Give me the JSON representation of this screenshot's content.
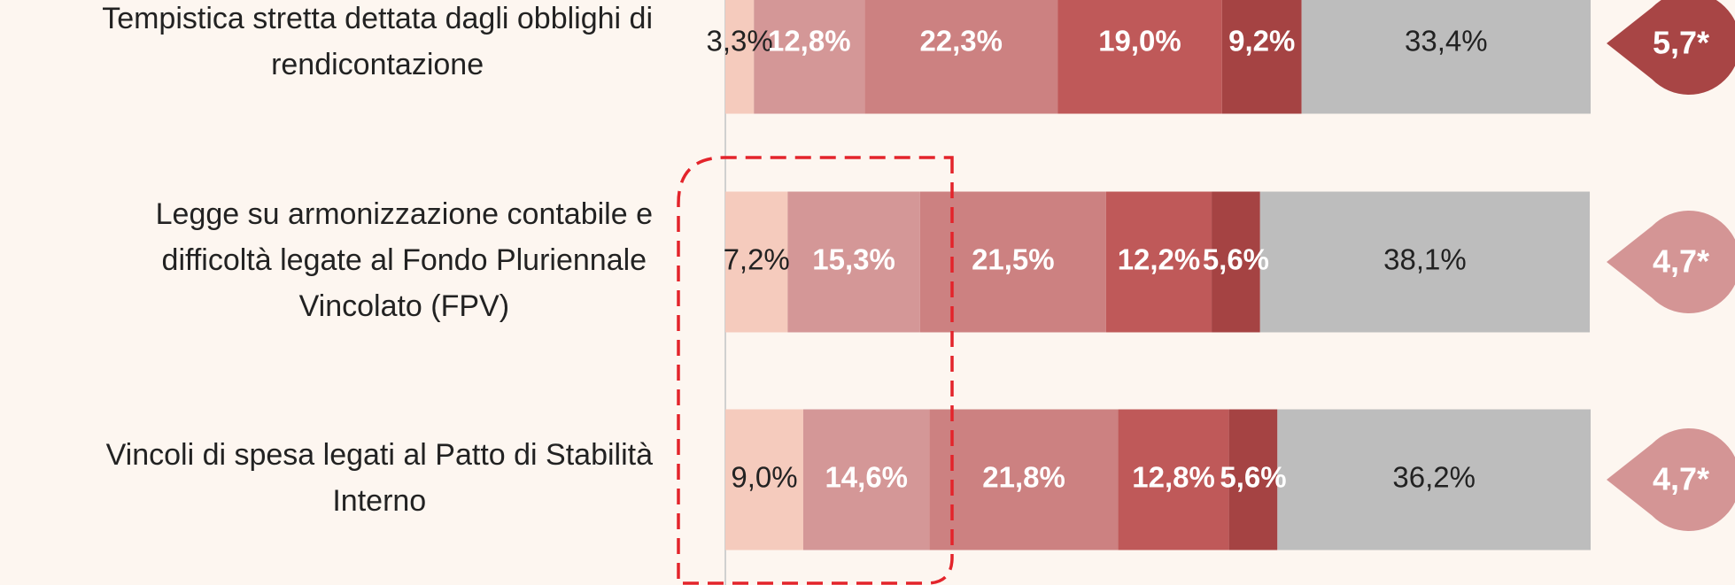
{
  "chart_data": {
    "type": "stacked-bar-horizontal",
    "categories": [
      [
        "Tempistica stretta dettata dagli obblighi di",
        "rendicontazione"
      ],
      [
        "Legge su armonizzazione contabile e",
        "difficoltà legate al Fondo Pluriennale",
        "Vincolato (FPV)"
      ],
      [
        "Vincoli di spesa legati al Patto di Stabilità",
        "Interno"
      ]
    ],
    "xlim": [
      0,
      100
    ],
    "series": [
      {
        "color": "#f5cbbd",
        "label_color": "#222222",
        "values": [
          3.3,
          7.2,
          9.0
        ],
        "value_labels": [
          "3,3%",
          "7,2%",
          "9,0%"
        ]
      },
      {
        "color": "#d49797",
        "label_color": "#ffffff",
        "values": [
          12.8,
          15.3,
          14.6
        ],
        "value_labels": [
          "12,8%",
          "15,3%",
          "14,6%"
        ]
      },
      {
        "color": "#cc8181",
        "label_color": "#ffffff",
        "values": [
          22.3,
          21.5,
          21.8
        ],
        "value_labels": [
          "22,3%",
          "21,5%",
          "21,8%"
        ]
      },
      {
        "color": "#bf5959",
        "label_color": "#ffffff",
        "values": [
          19.0,
          12.2,
          12.8
        ],
        "value_labels": [
          "19,0%",
          "12,2%",
          "12,8%"
        ]
      },
      {
        "color": "#a54343",
        "label_color": "#ffffff",
        "values": [
          9.2,
          5.6,
          5.6
        ],
        "value_labels": [
          "9,2%",
          "5,6%",
          "5,6%"
        ]
      },
      {
        "color": "#bdbdbd",
        "label_color": "#222222",
        "values": [
          33.4,
          38.1,
          36.2
        ],
        "value_labels": [
          "33,4%",
          "38,1%",
          "36,2%"
        ]
      }
    ],
    "annotations": [
      {
        "text": "5,7*",
        "color": "#a84545"
      },
      {
        "text": "4,7*",
        "color": "#d49595"
      },
      {
        "text": "4,7*",
        "color": "#d49595"
      }
    ]
  }
}
